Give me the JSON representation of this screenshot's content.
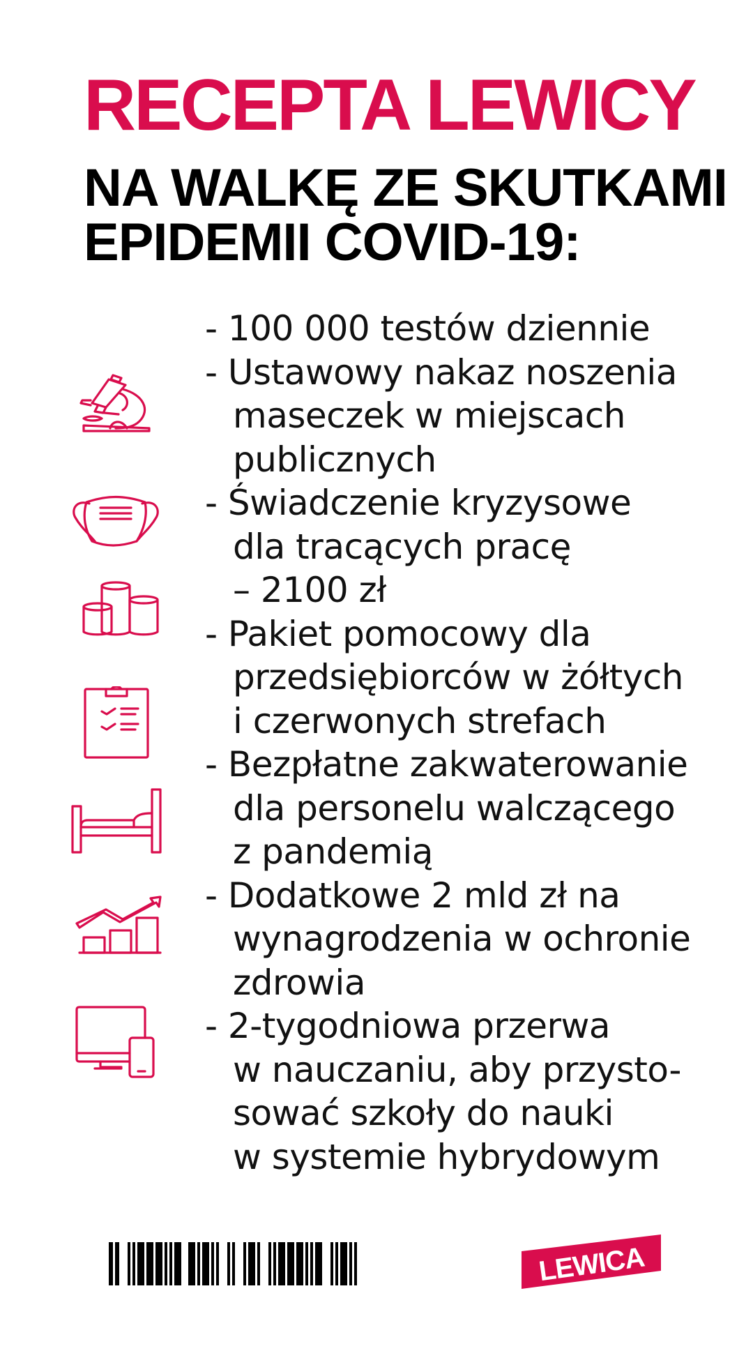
{
  "title": "RECEPTA LEWICY",
  "subtitle_lines": [
    "NA WALKĘ ZE SKUTKAMI",
    "EPIDEMII COVID-19:"
  ],
  "accent_color": "#d90d4d",
  "items": [
    {
      "icon": "microscope-icon",
      "lines": [
        "- 100 000 testów dziennie"
      ]
    },
    {
      "icon": "face-mask-icon",
      "lines": [
        "- Ustawowy nakaz noszenia",
        "maseczek w miejscach",
        "publicznych"
      ]
    },
    {
      "icon": "coins-icon",
      "lines": [
        "- Świadczenie kryzysowe",
        "dla tracących pracę",
        "– 2100 zł"
      ]
    },
    {
      "icon": "clipboard-checklist-icon",
      "lines": [
        "- Pakiet pomocowy dla",
        "przedsiębiorców w żółtych",
        "i czerwonych strefach"
      ]
    },
    {
      "icon": "bed-icon",
      "lines": [
        "- Bezpłatne zakwaterowanie",
        "dla personelu walczącego",
        "z pandemią"
      ]
    },
    {
      "icon": "growth-chart-icon",
      "lines": [
        "- Dodatkowe 2 mld zł na",
        "wynagrodzenia w ochronie",
        "zdrowia"
      ]
    },
    {
      "icon": "computer-devices-icon",
      "lines": [
        "- 2-tygodniowa przerwa",
        "w nauczaniu, aby przysto-",
        "sować szkoły do nauki",
        "w systemie hybrydowym"
      ]
    }
  ],
  "logo_text": "LEWICA"
}
